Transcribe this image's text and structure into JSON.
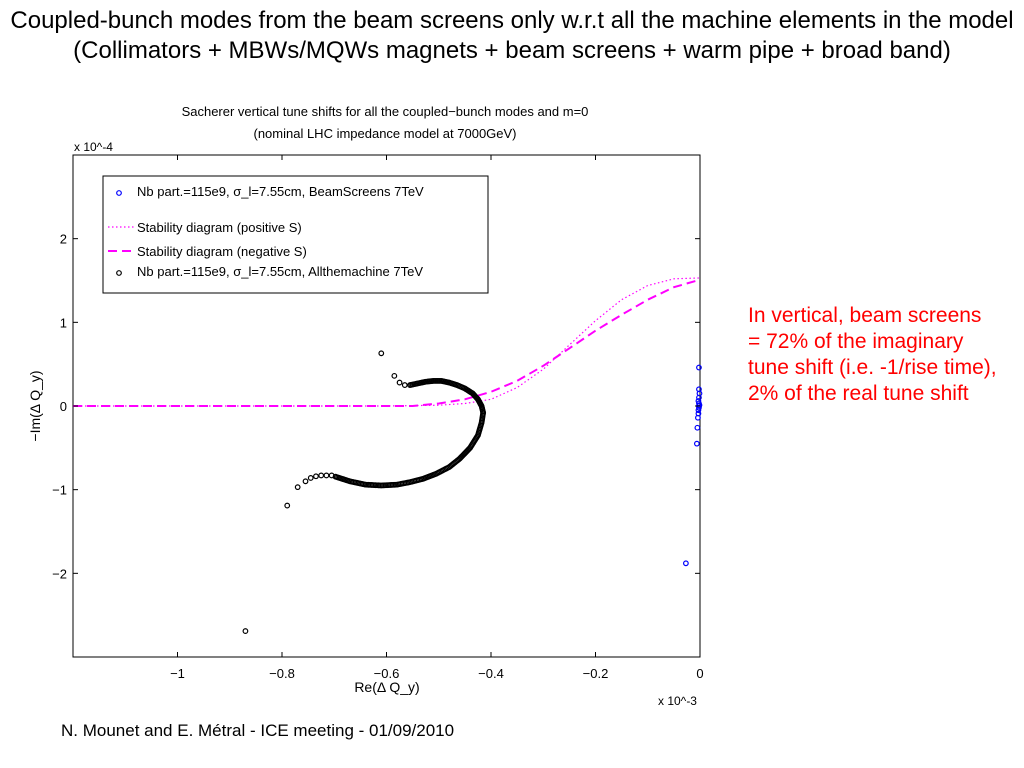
{
  "slide": {
    "title": "Coupled-bunch modes from the beam screens only w.r.t all the machine elements in the model (Collimators + MBWs/MQWs magnets + beam screens + warm pipe + broad band)",
    "note": "In vertical, beam screens = 72% of the imaginary tune shift (i.e. -1/rise time), 2% of the real tune shift",
    "footer": "N. Mounet and E. Métral - ICE meeting - 01/09/2010"
  },
  "colors": {
    "beamscreen_markers": "#0000ff",
    "allmachine_markers": "#000000",
    "stability_curves": "#ff00ff",
    "note_text": "#ff0000"
  },
  "chart_data": {
    "type": "scatter",
    "title": "Sacherer vertical tune shifts for all the coupled−bunch modes and m=0",
    "subtitle": "(nominal LHC impedance model at 7000GeV)",
    "xlabel": "Re(Δ Q_y)",
    "ylabel": "−Im(Δ Q_y)",
    "x_multiplier": "x 10^-3",
    "y_multiplier": "x 10^-4",
    "xlim": [
      -1.2,
      0
    ],
    "ylim": [
      -3,
      3
    ],
    "x_ticks": [
      -1,
      -0.8,
      -0.6,
      -0.4,
      -0.2,
      0
    ],
    "y_ticks": [
      -2,
      -1,
      0,
      1,
      2
    ],
    "x_tick_labels": [
      "−1",
      "−0.8",
      "−0.6",
      "−0.4",
      "−0.2",
      "0"
    ],
    "y_tick_labels": [
      "−2",
      "−1",
      "0",
      "1",
      "2"
    ],
    "grid": false,
    "legend_position": "top-left",
    "series": [
      {
        "name": "Nb part.=115e9, σ_l=7.55cm, BeamScreens 7TeV",
        "kind": "markers",
        "color": "#0000ff",
        "points": [
          [
            -0.002,
            0.46
          ],
          [
            -0.002,
            0.2
          ],
          [
            -0.001,
            0.15
          ],
          [
            -0.002,
            0.1
          ],
          [
            -0.003,
            0.06
          ],
          [
            -0.002,
            0.03
          ],
          [
            -0.001,
            0.01
          ],
          [
            -0.002,
            0.0
          ],
          [
            -0.002,
            -0.02
          ],
          [
            -0.003,
            -0.05
          ],
          [
            -0.003,
            -0.09
          ],
          [
            -0.004,
            -0.14
          ],
          [
            -0.005,
            -0.26
          ],
          [
            -0.006,
            -0.45
          ],
          [
            -0.027,
            -1.88
          ]
        ]
      },
      {
        "name": "Stability diagram (positive S)",
        "kind": "dotted-line",
        "color": "#ff00ff",
        "points": [
          [
            -1.2,
            0.0
          ],
          [
            -0.6,
            0.0
          ],
          [
            -0.5,
            0.01
          ],
          [
            -0.45,
            0.03
          ],
          [
            -0.4,
            0.08
          ],
          [
            -0.35,
            0.22
          ],
          [
            -0.3,
            0.44
          ],
          [
            -0.25,
            0.73
          ],
          [
            -0.2,
            1.02
          ],
          [
            -0.15,
            1.27
          ],
          [
            -0.1,
            1.44
          ],
          [
            -0.05,
            1.52
          ],
          [
            0.0,
            1.53
          ]
        ]
      },
      {
        "name": "Stability diagram (negative S)",
        "kind": "dashed-line",
        "color": "#ff00ff",
        "points": [
          [
            -1.2,
            0.0
          ],
          [
            -0.55,
            0.0
          ],
          [
            -0.5,
            0.03
          ],
          [
            -0.45,
            0.08
          ],
          [
            -0.4,
            0.17
          ],
          [
            -0.35,
            0.3
          ],
          [
            -0.3,
            0.48
          ],
          [
            -0.25,
            0.69
          ],
          [
            -0.2,
            0.9
          ],
          [
            -0.15,
            1.09
          ],
          [
            -0.1,
            1.27
          ],
          [
            -0.05,
            1.42
          ],
          [
            0.0,
            1.51
          ]
        ]
      },
      {
        "name": "Nb part.=115e9, σ_l=7.55cm, Allthemachine 7TeV",
        "kind": "markers",
        "color": "#000000",
        "points": [
          [
            -0.87,
            -2.69
          ],
          [
            -0.79,
            -1.19
          ],
          [
            -0.77,
            -0.97
          ],
          [
            -0.755,
            -0.9
          ],
          [
            -0.745,
            -0.86
          ],
          [
            -0.735,
            -0.84
          ],
          [
            -0.725,
            -0.83
          ],
          [
            -0.715,
            -0.83
          ],
          [
            -0.705,
            -0.83
          ],
          [
            -0.61,
            0.63
          ],
          [
            -0.585,
            0.36
          ],
          [
            -0.575,
            0.28
          ],
          [
            -0.565,
            0.25
          ]
        ],
        "dense_arc": [
          [
            -0.555,
            0.25
          ],
          [
            -0.54,
            0.27
          ],
          [
            -0.525,
            0.29
          ],
          [
            -0.51,
            0.3
          ],
          [
            -0.495,
            0.3
          ],
          [
            -0.48,
            0.28
          ],
          [
            -0.465,
            0.25
          ],
          [
            -0.45,
            0.21
          ],
          [
            -0.435,
            0.15
          ],
          [
            -0.425,
            0.08
          ],
          [
            -0.418,
            0.0
          ],
          [
            -0.415,
            -0.08
          ],
          [
            -0.418,
            -0.2
          ],
          [
            -0.425,
            -0.35
          ],
          [
            -0.44,
            -0.5
          ],
          [
            -0.46,
            -0.63
          ],
          [
            -0.48,
            -0.73
          ],
          [
            -0.505,
            -0.81
          ],
          [
            -0.53,
            -0.87
          ],
          [
            -0.555,
            -0.91
          ],
          [
            -0.58,
            -0.94
          ],
          [
            -0.61,
            -0.95
          ],
          [
            -0.64,
            -0.94
          ],
          [
            -0.67,
            -0.9
          ],
          [
            -0.69,
            -0.86
          ],
          [
            -0.7,
            -0.84
          ]
        ]
      }
    ]
  }
}
